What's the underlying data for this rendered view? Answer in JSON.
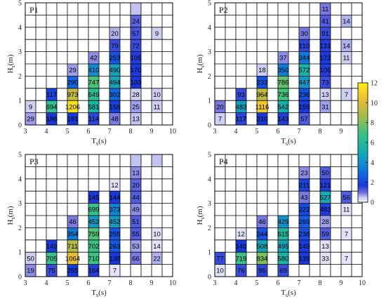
{
  "figure": {
    "colorbar": {
      "min": 0,
      "max": 12,
      "ticks": [
        "0",
        "2",
        "4",
        "6",
        "8",
        "10",
        "12"
      ]
    }
  },
  "chart_data": [
    {
      "type": "heatmap",
      "title": "P1",
      "xlabel_main": "T",
      "xlabel_sub": "s",
      "xlabel_unit": "(s)",
      "ylabel_main": "H",
      "ylabel_sub": "s",
      "ylabel_unit": "(m)",
      "xlim": [
        3,
        10
      ],
      "ylim": [
        0,
        5
      ],
      "x_ticks": [
        "3",
        "4",
        "5",
        "6",
        "7",
        "8",
        "9",
        "10"
      ],
      "y_ticks": [
        "0",
        "1",
        "2",
        "3",
        "4",
        "5"
      ],
      "bin_width_x": 0.5,
      "bin_width_y": 0.5,
      "cells": [
        {
          "x": 3.0,
          "y": 0.0,
          "text": "29",
          "v": 0.7
        },
        {
          "x": 4.0,
          "y": 0.0,
          "text": "186",
          "v": 1.7
        },
        {
          "x": 5.0,
          "y": 0.0,
          "text": "191",
          "v": 1.7
        },
        {
          "x": 6.0,
          "y": 0.0,
          "text": "114",
          "v": 1.5
        },
        {
          "x": 7.0,
          "y": 0.0,
          "text": "48",
          "v": 0.9
        },
        {
          "x": 8.0,
          "y": 0.0,
          "text": "13",
          "v": 0.5
        },
        {
          "x": 3.0,
          "y": 0.5,
          "text": "9",
          "v": 0.4
        },
        {
          "x": 4.0,
          "y": 0.5,
          "text": "694",
          "v": 6.6
        },
        {
          "x": 5.0,
          "y": 0.5,
          "text": "1206",
          "v": 11.6
        },
        {
          "x": 6.0,
          "y": 0.5,
          "text": "581",
          "v": 5.6
        },
        {
          "x": 7.0,
          "y": 0.5,
          "text": "158",
          "v": 1.9
        },
        {
          "x": 8.0,
          "y": 0.5,
          "text": "25",
          "v": 0.7
        },
        {
          "x": 9.0,
          "y": 0.5,
          "text": "11",
          "v": 0.4
        },
        {
          "x": 4.0,
          "y": 1.0,
          "text": "117",
          "v": 2.0
        },
        {
          "x": 5.0,
          "y": 1.0,
          "text": "973",
          "v": 9.4
        },
        {
          "x": 6.0,
          "y": 1.0,
          "text": "649",
          "v": 6.3
        },
        {
          "x": 7.0,
          "y": 1.0,
          "text": "302",
          "v": 2.9
        },
        {
          "x": 8.0,
          "y": 1.0,
          "text": "28",
          "v": 0.4
        },
        {
          "x": 9.0,
          "y": 1.0,
          "text": "10",
          "v": 0.4
        },
        {
          "x": 5.0,
          "y": 1.5,
          "text": "290",
          "v": 2.8
        },
        {
          "x": 6.0,
          "y": 1.5,
          "text": "747",
          "v": 7.2
        },
        {
          "x": 7.0,
          "y": 1.5,
          "text": "494",
          "v": 4.8
        },
        {
          "x": 8.0,
          "y": 1.5,
          "text": "103",
          "v": 1.7
        },
        {
          "x": 5.0,
          "y": 2.0,
          "text": "29",
          "v": 0.7
        },
        {
          "x": 6.0,
          "y": 2.0,
          "text": "410",
          "v": 3.9
        },
        {
          "x": 7.0,
          "y": 2.0,
          "text": "490",
          "v": 4.7
        },
        {
          "x": 8.0,
          "y": 2.0,
          "text": "170",
          "v": 1.8
        },
        {
          "x": 6.0,
          "y": 2.5,
          "text": "42",
          "v": 0.8
        },
        {
          "x": 7.0,
          "y": 2.5,
          "text": "253",
          "v": 2.4
        },
        {
          "x": 8.0,
          "y": 2.5,
          "text": "105",
          "v": 1.6
        },
        {
          "x": 7.0,
          "y": 3.0,
          "text": "79",
          "v": 1.4
        },
        {
          "x": 8.0,
          "y": 3.0,
          "text": "72",
          "v": 1.4
        },
        {
          "x": 7.0,
          "y": 3.5,
          "text": "20",
          "v": 0.6
        },
        {
          "x": 8.0,
          "y": 3.5,
          "text": "57",
          "v": 1.3
        },
        {
          "x": 9.0,
          "y": 3.5,
          "text": "9",
          "v": 0.4
        },
        {
          "x": 8.0,
          "y": 4.0,
          "text": "24",
          "v": 1.1
        },
        {
          "x": 8.0,
          "y": 4.5,
          "text": "",
          "v": 0.5
        }
      ]
    },
    {
      "type": "heatmap",
      "title": "P2",
      "xlabel_main": "T",
      "xlabel_sub": "s",
      "xlabel_unit": "(s)",
      "ylabel_main": "H",
      "ylabel_sub": "s",
      "ylabel_unit": "(m)",
      "xlim": [
        3,
        10
      ],
      "ylim": [
        0,
        5
      ],
      "x_ticks": [
        "3",
        "4",
        "5",
        "6",
        "7",
        "8",
        "9",
        "10"
      ],
      "y_ticks": [
        "0",
        "1",
        "2",
        "3",
        "4",
        "5"
      ],
      "bin_width_x": 0.5,
      "bin_width_y": 0.5,
      "cells": [
        {
          "x": 3.0,
          "y": 0.0,
          "text": "7",
          "v": 0.4
        },
        {
          "x": 4.0,
          "y": 0.0,
          "text": "117",
          "v": 1.5
        },
        {
          "x": 5.0,
          "y": 0.0,
          "text": "210",
          "v": 1.7
        },
        {
          "x": 6.0,
          "y": 0.0,
          "text": "143",
          "v": 1.6
        },
        {
          "x": 7.0,
          "y": 0.0,
          "text": "57",
          "v": 1.2
        },
        {
          "x": 3.0,
          "y": 0.5,
          "text": "20",
          "v": 0.9
        },
        {
          "x": 4.0,
          "y": 0.5,
          "text": "483",
          "v": 4.6
        },
        {
          "x": 5.0,
          "y": 0.5,
          "text": "1116",
          "v": 10.8
        },
        {
          "x": 6.0,
          "y": 0.5,
          "text": "542",
          "v": 5.2
        },
        {
          "x": 7.0,
          "y": 0.5,
          "text": "159",
          "v": 1.8
        },
        {
          "x": 8.0,
          "y": 0.5,
          "text": "31",
          "v": 0.7
        },
        {
          "x": 4.0,
          "y": 1.0,
          "text": "93",
          "v": 1.4
        },
        {
          "x": 5.0,
          "y": 1.0,
          "text": "964",
          "v": 9.3
        },
        {
          "x": 6.0,
          "y": 1.0,
          "text": "736",
          "v": 7.1
        },
        {
          "x": 7.0,
          "y": 1.0,
          "text": "236",
          "v": 2.3
        },
        {
          "x": 8.0,
          "y": 1.0,
          "text": "13",
          "v": 0.4
        },
        {
          "x": 9.0,
          "y": 1.0,
          "text": "7",
          "v": 0.4
        },
        {
          "x": 5.0,
          "y": 1.5,
          "text": "233",
          "v": 2.3
        },
        {
          "x": 6.0,
          "y": 1.5,
          "text": "786",
          "v": 7.6
        },
        {
          "x": 7.0,
          "y": 1.5,
          "text": "447",
          "v": 4.3
        },
        {
          "x": 8.0,
          "y": 1.5,
          "text": "73",
          "v": 1.4
        },
        {
          "x": 5.0,
          "y": 2.0,
          "text": "18",
          "v": 0.4
        },
        {
          "x": 6.0,
          "y": 2.0,
          "text": "350",
          "v": 3.4
        },
        {
          "x": 7.0,
          "y": 2.0,
          "text": "572",
          "v": 5.5
        },
        {
          "x": 8.0,
          "y": 2.0,
          "text": "105",
          "v": 1.6
        },
        {
          "x": 6.0,
          "y": 2.5,
          "text": "37",
          "v": 0.8
        },
        {
          "x": 7.0,
          "y": 2.5,
          "text": "344",
          "v": 3.3
        },
        {
          "x": 8.0,
          "y": 2.5,
          "text": "172",
          "v": 1.8
        },
        {
          "x": 9.0,
          "y": 2.5,
          "text": "11",
          "v": 0.4
        },
        {
          "x": 7.0,
          "y": 3.0,
          "text": "110",
          "v": 1.5
        },
        {
          "x": 8.0,
          "y": 3.0,
          "text": "131",
          "v": 1.6
        },
        {
          "x": 9.0,
          "y": 3.0,
          "text": "14",
          "v": 0.6
        },
        {
          "x": 7.0,
          "y": 3.5,
          "text": "30",
          "v": 0.9
        },
        {
          "x": 8.0,
          "y": 3.5,
          "text": "91",
          "v": 1.4
        },
        {
          "x": 8.0,
          "y": 4.0,
          "text": "41",
          "v": 1.2
        },
        {
          "x": 9.0,
          "y": 4.0,
          "text": "14",
          "v": 0.6
        },
        {
          "x": 8.0,
          "y": 4.5,
          "text": "11",
          "v": 0.9
        }
      ]
    },
    {
      "type": "heatmap",
      "title": "P3",
      "xlabel_main": "T",
      "xlabel_sub": "s",
      "xlabel_unit": "(s)",
      "ylabel_main": "H",
      "ylabel_sub": "s",
      "ylabel_unit": "(m)",
      "xlim": [
        3,
        10
      ],
      "ylim": [
        0,
        5
      ],
      "x_ticks": [
        "3",
        "4",
        "5",
        "6",
        "7",
        "8",
        "9",
        "10"
      ],
      "y_ticks": [
        "0",
        "1",
        "2",
        "3",
        "4",
        "5"
      ],
      "bin_width_x": 0.5,
      "bin_width_y": 0.5,
      "cells": [
        {
          "x": 3.0,
          "y": 0.0,
          "text": "19",
          "v": 0.8
        },
        {
          "x": 4.0,
          "y": 0.0,
          "text": "75",
          "v": 1.4
        },
        {
          "x": 5.0,
          "y": 0.0,
          "text": "255",
          "v": 1.8
        },
        {
          "x": 6.0,
          "y": 0.0,
          "text": "164",
          "v": 1.6
        },
        {
          "x": 7.0,
          "y": 0.0,
          "text": "7",
          "v": 0.2
        },
        {
          "x": 3.0,
          "y": 0.5,
          "text": "50",
          "v": 0.4
        },
        {
          "x": 4.0,
          "y": 0.5,
          "text": "705",
          "v": 6.8
        },
        {
          "x": 5.0,
          "y": 0.5,
          "text": "1064",
          "v": 10.3
        },
        {
          "x": 6.0,
          "y": 0.5,
          "text": "710",
          "v": 6.9
        },
        {
          "x": 7.0,
          "y": 0.5,
          "text": "139",
          "v": 1.7
        },
        {
          "x": 8.0,
          "y": 0.5,
          "text": "66",
          "v": 0.9
        },
        {
          "x": 9.0,
          "y": 0.5,
          "text": "22",
          "v": 0.6
        },
        {
          "x": 4.0,
          "y": 1.0,
          "text": "149",
          "v": 1.8
        },
        {
          "x": 5.0,
          "y": 1.0,
          "text": "711",
          "v": 9.0
        },
        {
          "x": 6.0,
          "y": 1.0,
          "text": "702",
          "v": 6.8
        },
        {
          "x": 7.0,
          "y": 1.0,
          "text": "263",
          "v": 2.5
        },
        {
          "x": 8.0,
          "y": 1.0,
          "text": "53",
          "v": 0.7
        },
        {
          "x": 9.0,
          "y": 1.0,
          "text": "14",
          "v": 0.2
        },
        {
          "x": 5.0,
          "y": 1.5,
          "text": "354",
          "v": 3.4
        },
        {
          "x": 6.0,
          "y": 1.5,
          "text": "759",
          "v": 7.3
        },
        {
          "x": 7.0,
          "y": 1.5,
          "text": "255",
          "v": 2.4
        },
        {
          "x": 8.0,
          "y": 1.5,
          "text": "55",
          "v": 1.2
        },
        {
          "x": 9.0,
          "y": 1.5,
          "text": "10",
          "v": 0.2
        },
        {
          "x": 5.0,
          "y": 2.0,
          "text": "46",
          "v": 0.9
        },
        {
          "x": 6.0,
          "y": 2.0,
          "text": "452",
          "v": 4.4
        },
        {
          "x": 7.0,
          "y": 2.0,
          "text": "452",
          "v": 4.4
        },
        {
          "x": 8.0,
          "y": 2.0,
          "text": "51",
          "v": 1.2
        },
        {
          "x": 6.0,
          "y": 2.5,
          "text": "699",
          "v": 6.7
        },
        {
          "x": 7.0,
          "y": 2.5,
          "text": "373",
          "v": 3.6
        },
        {
          "x": 8.0,
          "y": 2.5,
          "text": "49",
          "v": 0.8
        },
        {
          "x": 6.0,
          "y": 3.0,
          "text": "145",
          "v": 1.7
        },
        {
          "x": 7.0,
          "y": 3.0,
          "text": "144",
          "v": 1.7
        },
        {
          "x": 8.0,
          "y": 3.0,
          "text": "44",
          "v": 1.2
        },
        {
          "x": 7.0,
          "y": 3.5,
          "text": "12",
          "v": 0.2
        },
        {
          "x": 8.0,
          "y": 3.5,
          "text": "20",
          "v": 1.1
        },
        {
          "x": 8.0,
          "y": 4.0,
          "text": "13",
          "v": 0.8
        },
        {
          "x": 8.0,
          "y": 4.5,
          "text": "",
          "v": 0.5
        },
        {
          "x": 9.0,
          "y": 4.5,
          "text": "",
          "v": 0.5
        }
      ]
    },
    {
      "type": "heatmap",
      "title": "P4",
      "xlabel_main": "T",
      "xlabel_sub": "s",
      "xlabel_unit": "(s)",
      "ylabel_main": "H",
      "ylabel_sub": "s",
      "ylabel_unit": "(m)",
      "xlim": [
        3,
        10
      ],
      "ylim": [
        0,
        5
      ],
      "x_ticks": [
        "3",
        "4",
        "5",
        "6",
        "7",
        "8",
        "9",
        "10"
      ],
      "y_ticks": [
        "0",
        "1",
        "2",
        "3",
        "4",
        "5"
      ],
      "bin_width_x": 0.5,
      "bin_width_y": 0.5,
      "cells": [
        {
          "x": 3.0,
          "y": 0.0,
          "text": "10",
          "v": 0.2
        },
        {
          "x": 4.0,
          "y": 0.0,
          "text": "76",
          "v": 1.4
        },
        {
          "x": 5.0,
          "y": 0.0,
          "text": "96",
          "v": 1.5
        },
        {
          "x": 6.0,
          "y": 0.0,
          "text": "69",
          "v": 1.4
        },
        {
          "x": 3.0,
          "y": 0.5,
          "text": "77",
          "v": 1.4
        },
        {
          "x": 4.0,
          "y": 0.5,
          "text": "719",
          "v": 6.9
        },
        {
          "x": 5.0,
          "y": 0.5,
          "text": "834",
          "v": 8.0
        },
        {
          "x": 6.0,
          "y": 0.5,
          "text": "580",
          "v": 5.6
        },
        {
          "x": 7.0,
          "y": 0.5,
          "text": "139",
          "v": 1.7
        },
        {
          "x": 8.0,
          "y": 0.5,
          "text": "33",
          "v": 0.2
        },
        {
          "x": 9.0,
          "y": 0.5,
          "text": "7",
          "v": 0.2
        },
        {
          "x": 4.0,
          "y": 1.0,
          "text": "140",
          "v": 1.7
        },
        {
          "x": 5.0,
          "y": 1.0,
          "text": "508",
          "v": 4.9
        },
        {
          "x": 6.0,
          "y": 1.0,
          "text": "495",
          "v": 4.8
        },
        {
          "x": 7.0,
          "y": 1.0,
          "text": "149",
          "v": 1.8
        },
        {
          "x": 8.0,
          "y": 1.0,
          "text": "13",
          "v": 0.2
        },
        {
          "x": 4.0,
          "y": 1.5,
          "text": "12",
          "v": 0.2
        },
        {
          "x": 5.0,
          "y": 1.5,
          "text": "244",
          "v": 2.4
        },
        {
          "x": 6.0,
          "y": 1.5,
          "text": "615",
          "v": 5.9
        },
        {
          "x": 7.0,
          "y": 1.5,
          "text": "238",
          "v": 2.3
        },
        {
          "x": 8.0,
          "y": 1.5,
          "text": "59",
          "v": 1.2
        },
        {
          "x": 9.0,
          "y": 1.5,
          "text": "7",
          "v": 0.2
        },
        {
          "x": 5.0,
          "y": 2.0,
          "text": "46",
          "v": 0.9
        },
        {
          "x": 6.0,
          "y": 2.0,
          "text": "429",
          "v": 4.1
        },
        {
          "x": 7.0,
          "y": 2.0,
          "text": "269",
          "v": 2.6
        },
        {
          "x": 8.0,
          "y": 2.0,
          "text": "28",
          "v": 0.7
        },
        {
          "x": 7.0,
          "y": 2.5,
          "text": "222",
          "v": 2.1
        },
        {
          "x": 8.0,
          "y": 2.5,
          "text": "483",
          "v": 1.6
        },
        {
          "x": 9.0,
          "y": 2.5,
          "text": "11",
          "v": 0.2
        },
        {
          "x": 7.0,
          "y": 3.0,
          "text": "43",
          "v": 0.9
        },
        {
          "x": 8.0,
          "y": 3.0,
          "text": "527",
          "v": 5.1
        },
        {
          "x": 9.0,
          "y": 3.0,
          "text": "56",
          "v": 1.2
        },
        {
          "x": 7.0,
          "y": 3.5,
          "text": "211",
          "v": 2.0
        },
        {
          "x": 8.0,
          "y": 3.5,
          "text": "121",
          "v": 1.6
        },
        {
          "x": 7.0,
          "y": 4.0,
          "text": "23",
          "v": 0.8
        },
        {
          "x": 8.0,
          "y": 4.0,
          "text": "50",
          "v": 1.2
        }
      ]
    }
  ]
}
